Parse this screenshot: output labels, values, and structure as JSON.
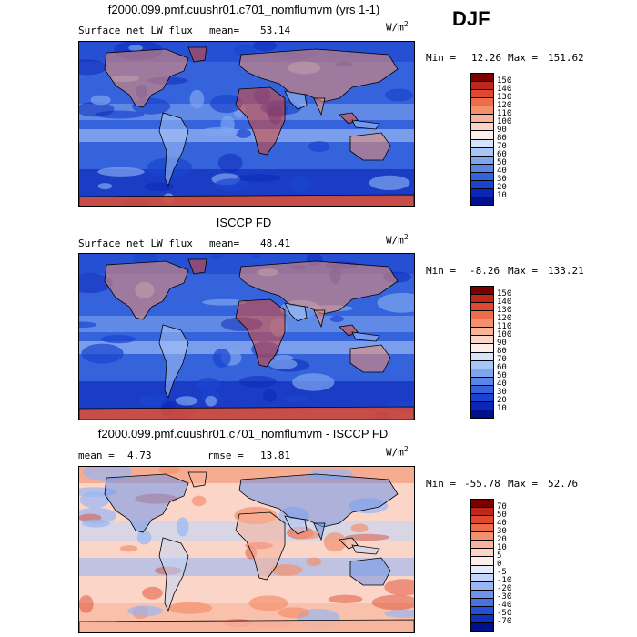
{
  "season": "DJF",
  "units_base": "W/m",
  "units_exp": "2",
  "panels": [
    {
      "title": "f2000.099.pmf.cuushr01.c701_nomflumvm (yrs 1-1)",
      "left_label": "Surface net LW flux",
      "stat_label": "mean=",
      "stat_value": "53.14",
      "min_label": "Min =",
      "min_value": "12.26",
      "max_label": "Max =",
      "max_value": "151.62",
      "colorbar_ticks": [
        "150",
        "140",
        "130",
        "120",
        "110",
        "100",
        "90",
        "80",
        "70",
        "60",
        "50",
        "40",
        "30",
        "20",
        "10"
      ],
      "colorbar_colors": [
        "#7a0000",
        "#c0271c",
        "#e0492f",
        "#ef6c4a",
        "#f4906c",
        "#f8b39a",
        "#fbd6c8",
        "#fdeee9",
        "#d6e4fb",
        "#a8c6f6",
        "#7fa5ef",
        "#5a84e6",
        "#3563dc",
        "#1a44cf",
        "#0a25b8",
        "#00108a"
      ],
      "palette": "abs"
    },
    {
      "title": "ISCCP FD",
      "left_label": "Surface net LW flux",
      "stat_label": "mean=",
      "stat_value": "48.41",
      "min_label": "Min =",
      "min_value": "-8.26",
      "max_label": "Max =",
      "max_value": "133.21",
      "colorbar_ticks": [
        "150",
        "140",
        "130",
        "120",
        "110",
        "100",
        "90",
        "80",
        "70",
        "60",
        "50",
        "40",
        "30",
        "20",
        "10"
      ],
      "colorbar_colors": [
        "#7a0000",
        "#c0271c",
        "#e0492f",
        "#ef6c4a",
        "#f4906c",
        "#f8b39a",
        "#fbd6c8",
        "#fdeee9",
        "#d6e4fb",
        "#a8c6f6",
        "#7fa5ef",
        "#5a84e6",
        "#3563dc",
        "#1a44cf",
        "#0a25b8",
        "#00108a"
      ],
      "palette": "abs"
    },
    {
      "title": "f2000.099.pmf.cuushr01.c701_nomflumvm - ISCCP FD",
      "left_label": "mean =",
      "left_value": "4.73",
      "stat_label": "rmse =",
      "stat_value": "13.81",
      "min_label": "Min =",
      "min_value": "-55.78",
      "max_label": "Max =",
      "max_value": "52.76",
      "colorbar_ticks": [
        "70",
        "50",
        "40",
        "30",
        "20",
        "10",
        "5",
        "0",
        "-5",
        "-10",
        "-20",
        "-30",
        "-40",
        "-50",
        "-70"
      ],
      "colorbar_colors": [
        "#7a0000",
        "#c0271c",
        "#e0492f",
        "#ef6c4a",
        "#f4906c",
        "#f8b39a",
        "#fbd6c8",
        "#fdeee9",
        "#e2ecfc",
        "#c2d5f8",
        "#98b6f2",
        "#6f93ea",
        "#4a71e0",
        "#2650d3",
        "#0f30bd",
        "#00108a"
      ],
      "palette": "diff"
    }
  ]
}
